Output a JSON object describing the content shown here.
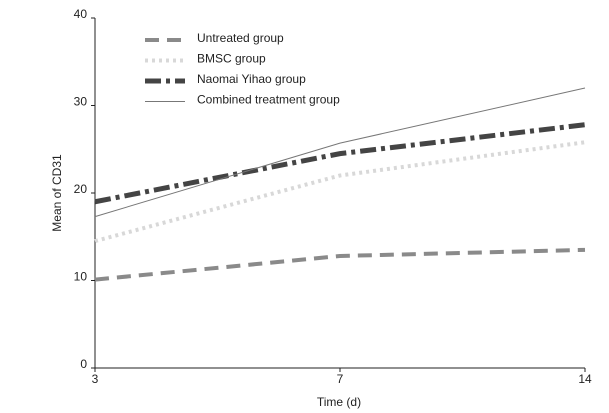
{
  "chart_data": {
    "type": "line",
    "x_label": "Time (d)",
    "y_label": "Mean of CD31",
    "categories": [
      "3",
      "7",
      "14"
    ],
    "ylim": [
      0,
      40
    ],
    "yticks": [
      0,
      10,
      20,
      30,
      40
    ],
    "series": [
      {
        "name": "Untreated group",
        "color": "#8a8a8a",
        "linestyle": "dashed",
        "values": [
          10.1,
          12.8,
          13.5
        ]
      },
      {
        "name": "BMSC group",
        "color": "#d8d8d8",
        "linestyle": "dotted",
        "values": [
          14.5,
          22,
          25.8
        ]
      },
      {
        "name": "Naomai Yihao group",
        "color": "#444444",
        "linestyle": "dashdot",
        "values": [
          19,
          24.5,
          27.8
        ]
      },
      {
        "name": "Combined treatment group",
        "color": "#777777",
        "linestyle": "thin",
        "values": [
          17.3,
          25.7,
          32
        ]
      }
    ]
  }
}
